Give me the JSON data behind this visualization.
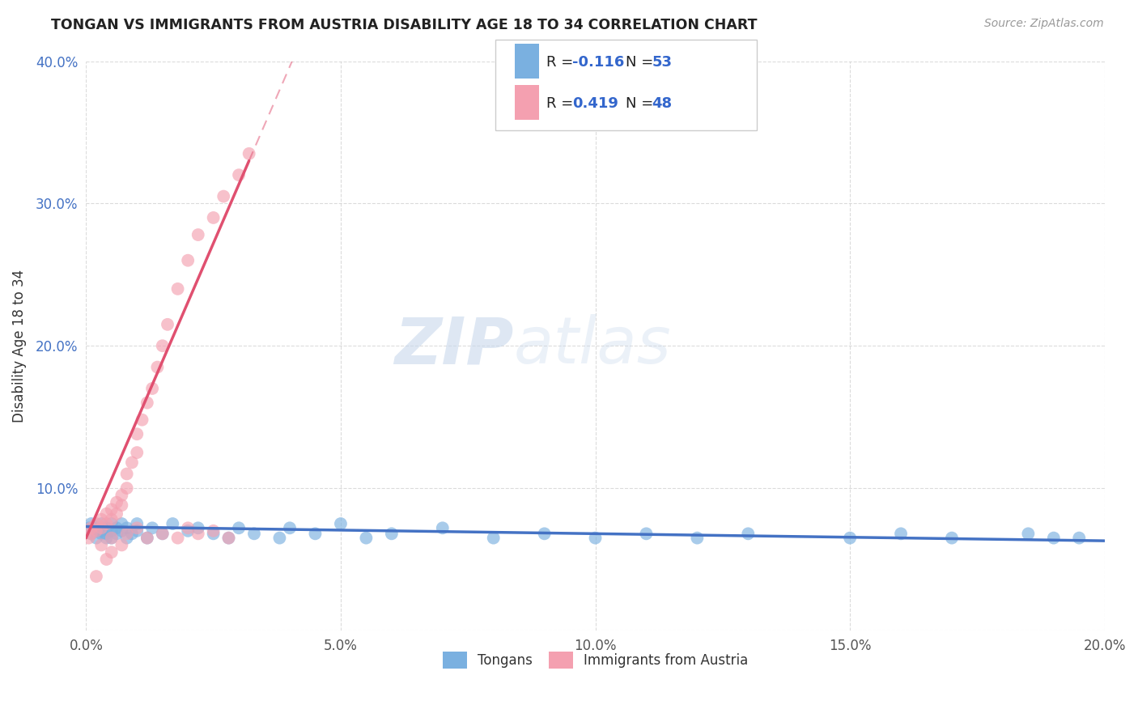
{
  "title": "TONGAN VS IMMIGRANTS FROM AUSTRIA DISABILITY AGE 18 TO 34 CORRELATION CHART",
  "source": "Source: ZipAtlas.com",
  "ylabel": "Disability Age 18 to 34",
  "xlim": [
    0.0,
    0.2
  ],
  "ylim": [
    0.0,
    0.4
  ],
  "xticks": [
    0.0,
    0.05,
    0.1,
    0.15,
    0.2
  ],
  "xtick_labels": [
    "0.0%",
    "5.0%",
    "10.0%",
    "15.0%",
    "20.0%"
  ],
  "yticks": [
    0.0,
    0.1,
    0.2,
    0.3,
    0.4
  ],
  "ytick_labels": [
    "",
    "10.0%",
    "20.0%",
    "30.0%",
    "40.0%"
  ],
  "series1_name": "Tongans",
  "series1_color": "#7ab0e0",
  "series1_line_color": "#4472c4",
  "series1_R": -0.116,
  "series1_N": 53,
  "series2_name": "Immigrants from Austria",
  "series2_color": "#f4a0b0",
  "series2_line_color": "#e05070",
  "series2_R": 0.419,
  "series2_N": 48,
  "legend_R_color": "#3366cc",
  "watermark_zip": "ZIP",
  "watermark_atlas": "atlas",
  "background_color": "#ffffff",
  "grid_color": "#cccccc",
  "tongans_x": [
    0.0005,
    0.001,
    0.001,
    0.002,
    0.002,
    0.002,
    0.003,
    0.003,
    0.003,
    0.004,
    0.004,
    0.004,
    0.005,
    0.005,
    0.005,
    0.006,
    0.006,
    0.007,
    0.007,
    0.008,
    0.008,
    0.009,
    0.01,
    0.01,
    0.012,
    0.013,
    0.015,
    0.017,
    0.02,
    0.022,
    0.025,
    0.028,
    0.03,
    0.033,
    0.038,
    0.04,
    0.045,
    0.05,
    0.055,
    0.06,
    0.07,
    0.08,
    0.09,
    0.1,
    0.11,
    0.12,
    0.13,
    0.15,
    0.16,
    0.17,
    0.185,
    0.19,
    0.195
  ],
  "tongans_y": [
    0.072,
    0.068,
    0.075,
    0.07,
    0.065,
    0.072,
    0.068,
    0.075,
    0.07,
    0.065,
    0.072,
    0.068,
    0.075,
    0.07,
    0.065,
    0.072,
    0.068,
    0.075,
    0.07,
    0.065,
    0.072,
    0.068,
    0.075,
    0.07,
    0.065,
    0.072,
    0.068,
    0.075,
    0.07,
    0.072,
    0.068,
    0.065,
    0.072,
    0.068,
    0.065,
    0.072,
    0.068,
    0.075,
    0.065,
    0.068,
    0.072,
    0.065,
    0.068,
    0.065,
    0.068,
    0.065,
    0.068,
    0.065,
    0.068,
    0.065,
    0.068,
    0.065,
    0.065
  ],
  "austria_x": [
    0.0005,
    0.001,
    0.001,
    0.002,
    0.002,
    0.003,
    0.003,
    0.004,
    0.004,
    0.005,
    0.005,
    0.006,
    0.006,
    0.007,
    0.007,
    0.008,
    0.008,
    0.009,
    0.01,
    0.01,
    0.011,
    0.012,
    0.013,
    0.014,
    0.015,
    0.016,
    0.018,
    0.02,
    0.022,
    0.025,
    0.027,
    0.03,
    0.032,
    0.005,
    0.008,
    0.01,
    0.012,
    0.015,
    0.018,
    0.02,
    0.022,
    0.025,
    0.028,
    0.003,
    0.005,
    0.007,
    0.002,
    0.004
  ],
  "austria_y": [
    0.065,
    0.068,
    0.072,
    0.07,
    0.075,
    0.072,
    0.078,
    0.075,
    0.082,
    0.078,
    0.085,
    0.082,
    0.09,
    0.088,
    0.095,
    0.1,
    0.11,
    0.118,
    0.125,
    0.138,
    0.148,
    0.16,
    0.17,
    0.185,
    0.2,
    0.215,
    0.24,
    0.26,
    0.278,
    0.29,
    0.305,
    0.32,
    0.335,
    0.065,
    0.068,
    0.072,
    0.065,
    0.068,
    0.065,
    0.072,
    0.068,
    0.07,
    0.065,
    0.06,
    0.055,
    0.06,
    0.038,
    0.05
  ]
}
